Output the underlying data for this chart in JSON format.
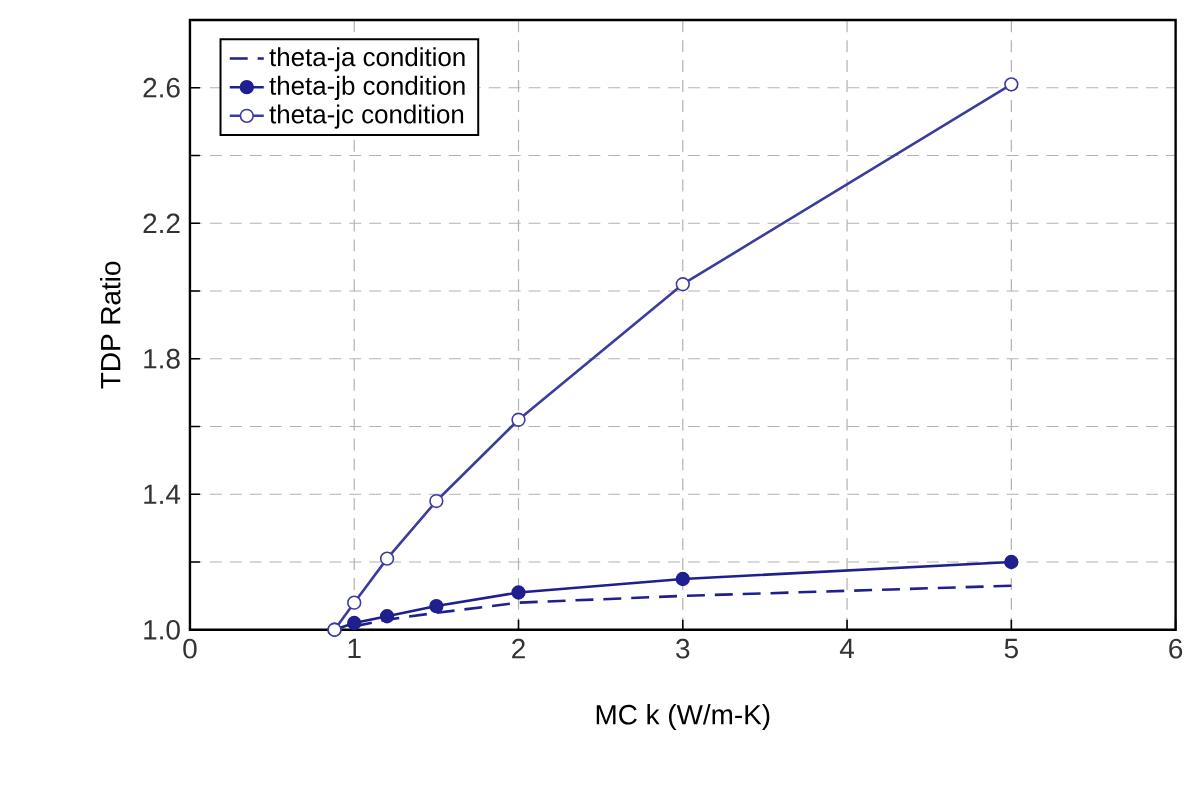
{
  "chart_data": {
    "type": "line",
    "xlabel": "MC k (W/m-K)",
    "ylabel": "TDP Ratio",
    "xlim": [
      0,
      6
    ],
    "xticks": [
      0,
      1,
      2,
      3,
      4,
      5,
      6
    ],
    "ylim": [
      1.0,
      2.8
    ],
    "yticks": [
      {
        "value": 1.0,
        "label": "1.0"
      },
      {
        "value": 1.2,
        "label": null
      },
      {
        "value": 1.4,
        "label": "1.4"
      },
      {
        "value": 1.6,
        "label": null
      },
      {
        "value": 1.8,
        "label": "1.8"
      },
      {
        "value": 2.0,
        "label": null
      },
      {
        "value": 2.2,
        "label": "2.2"
      },
      {
        "value": 2.4,
        "label": null
      },
      {
        "value": 2.6,
        "label": "2.6"
      },
      {
        "value": 2.8,
        "label": null
      }
    ],
    "grid": true,
    "legend": "top left",
    "series": [
      {
        "name": "theta-ja condition",
        "color": "#1f1f8f",
        "line_style": "dashed",
        "marker": "none",
        "x": [
          1,
          1.2,
          1.5,
          2,
          3,
          5
        ],
        "values": [
          1.01,
          1.03,
          1.05,
          1.08,
          1.1,
          1.13
        ]
      },
      {
        "name": "theta-jb condition",
        "color": "#1f1f8f",
        "line_style": "solid",
        "marker": "circle",
        "x": [
          0.88,
          1,
          1.2,
          1.5,
          2,
          3,
          5
        ],
        "values": [
          1.0,
          1.02,
          1.04,
          1.07,
          1.11,
          1.15,
          1.2
        ]
      },
      {
        "name": "theta-jc condition",
        "color": "#3c3ca0",
        "line_style": "solid",
        "marker": "circle",
        "x": [
          0.88,
          1,
          1.2,
          1.5,
          2,
          3,
          5
        ],
        "values": [
          1.0,
          1.08,
          1.21,
          1.38,
          1.62,
          2.02,
          2.61
        ]
      }
    ]
  }
}
